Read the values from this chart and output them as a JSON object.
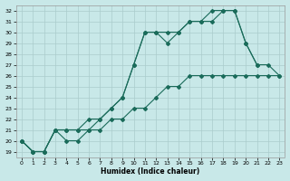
{
  "xlabel": "Humidex (Indice chaleur)",
  "bg_color": "#c8e8e8",
  "grid_color": "#aacccc",
  "line_color": "#1a6b5a",
  "xlim": [
    -0.5,
    23.5
  ],
  "ylim": [
    18.5,
    32.5
  ],
  "xticks": [
    0,
    1,
    2,
    3,
    4,
    5,
    6,
    7,
    8,
    9,
    10,
    11,
    12,
    13,
    14,
    15,
    16,
    17,
    18,
    19,
    20,
    21,
    22,
    23
  ],
  "yticks": [
    19,
    20,
    21,
    22,
    23,
    24,
    25,
    26,
    27,
    28,
    29,
    30,
    31,
    32
  ],
  "line1": {
    "x": [
      0,
      1,
      2,
      3,
      4,
      5,
      6,
      7,
      8,
      9,
      10,
      11,
      12,
      13,
      14,
      15,
      16,
      17,
      18,
      19,
      20,
      21,
      22,
      23
    ],
    "y": [
      20,
      19,
      19,
      21,
      20,
      20,
      21,
      21,
      22,
      22,
      23,
      23,
      24,
      25,
      25,
      26,
      26,
      26,
      26,
      26,
      26,
      26,
      26,
      26
    ]
  },
  "line2": {
    "x": [
      0,
      1,
      2,
      3,
      4,
      5,
      6,
      7,
      8,
      9,
      10,
      11,
      12,
      13,
      14,
      15,
      16,
      17,
      18,
      19,
      20,
      21,
      22,
      23
    ],
    "y": [
      20,
      19,
      19,
      21,
      21,
      21,
      22,
      22,
      23,
      24,
      27,
      30,
      30,
      29,
      30,
      31,
      31,
      31,
      32,
      32,
      29,
      27,
      27,
      26
    ]
  },
  "line3": {
    "x": [
      0,
      1,
      2,
      3,
      4,
      5,
      6,
      7,
      8,
      9,
      10,
      11,
      12,
      13,
      14,
      15,
      16,
      17,
      18,
      19,
      20,
      21,
      22,
      23
    ],
    "y": [
      20,
      19,
      19,
      21,
      21,
      21,
      21,
      22,
      23,
      24,
      27,
      30,
      30,
      30,
      30,
      31,
      31,
      32,
      32,
      32,
      29,
      27,
      null,
      null
    ]
  }
}
